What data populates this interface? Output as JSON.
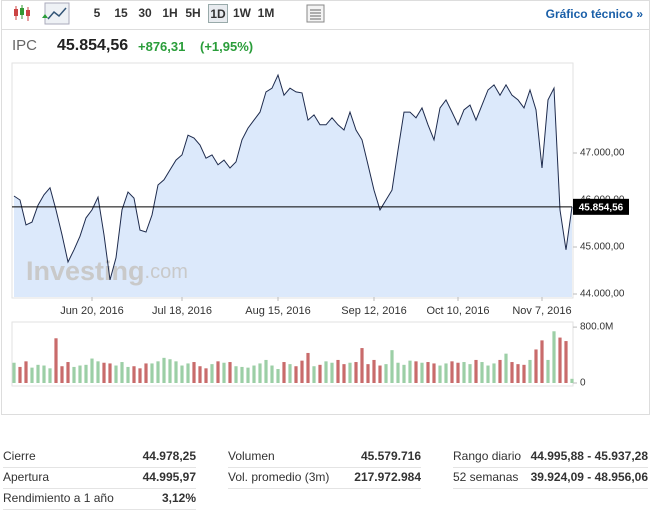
{
  "toolbar": {
    "intervals": [
      "5",
      "15",
      "30",
      "1H",
      "5H",
      "1D",
      "1W",
      "1M"
    ],
    "active_index": 5,
    "link": "Gráfico técnico »"
  },
  "quote": {
    "symbol": "IPC",
    "price": "45.854,56",
    "change": "+876,31",
    "change_pct": "(+1,95%)"
  },
  "watermark": [
    "Investing",
    ".com"
  ],
  "chart_data": [
    {
      "type": "area",
      "color": "#1e2b4d",
      "fill": "#dce9fb",
      "values": [
        46085,
        46000,
        45470,
        45530,
        45890,
        46110,
        46260,
        45790,
        45260,
        44680,
        44940,
        45230,
        45620,
        45790,
        46060,
        45260,
        44300,
        44770,
        45790,
        46170,
        46040,
        45360,
        45320,
        45680,
        46320,
        46430,
        46640,
        46850,
        46960,
        47380,
        47320,
        47170,
        46890,
        46960,
        46750,
        46850,
        46680,
        46810,
        47280,
        47530,
        47700,
        47870,
        48300,
        48380,
        48660,
        48230,
        48380,
        48300,
        48280,
        47700,
        47810,
        47600,
        47600,
        47750,
        47600,
        47490,
        47870,
        47490,
        47280,
        46750,
        46210,
        45790,
        46000,
        46210,
        47060,
        47870,
        47870,
        47750,
        47960,
        47600,
        47280,
        47960,
        48130,
        47870,
        47600,
        47920,
        48020,
        47700,
        48020,
        48340,
        48450,
        48230,
        48450,
        48230,
        48130,
        47960,
        48340,
        47920,
        46680,
        48130,
        48380,
        45790,
        44940,
        45854.56
      ],
      "xlim": [
        0,
        93
      ],
      "xticks": [
        {
          "value": 13,
          "label": "Jun 20, 2016"
        },
        {
          "value": 28,
          "label": "Jul 18, 2016"
        },
        {
          "value": 44,
          "label": "Aug 15, 2016"
        },
        {
          "value": 60,
          "label": "Sep 12, 2016"
        },
        {
          "value": 74,
          "label": "Oct 10, 2016"
        },
        {
          "value": 88,
          "label": "Nov 7, 2016"
        }
      ],
      "ylim": [
        43936,
        48894
      ],
      "yticks": [
        {
          "value": 44000,
          "label": "44.000,00"
        },
        {
          "value": 45000,
          "label": "45.000,00"
        },
        {
          "value": 46000,
          "label": "46.000,00"
        },
        {
          "value": 47000,
          "label": "47.000,00"
        }
      ]
    },
    {
      "type": "bar",
      "up_color": "#9ccfa6",
      "down_color": "#c96b6b",
      "values": [
        290,
        230,
        310,
        220,
        260,
        250,
        210,
        640,
        240,
        300,
        230,
        250,
        260,
        350,
        310,
        290,
        280,
        250,
        300,
        230,
        240,
        210,
        280,
        280,
        310,
        360,
        340,
        310,
        250,
        280,
        300,
        240,
        210,
        270,
        310,
        290,
        300,
        240,
        230,
        220,
        250,
        280,
        330,
        250,
        200,
        300,
        270,
        240,
        320,
        430,
        240,
        260,
        310,
        290,
        330,
        270,
        290,
        300,
        500,
        270,
        330,
        250,
        270,
        470,
        290,
        260,
        320,
        310,
        290,
        300,
        280,
        250,
        280,
        310,
        290,
        300,
        270,
        330,
        300,
        250,
        280,
        330,
        420,
        300,
        270,
        260,
        330,
        480,
        610,
        330,
        740,
        650,
        600,
        60
      ],
      "ylim": [
        0,
        830
      ],
      "yticks": [
        0,
        {
          "value": 800,
          "label": "800.0M"
        }
      ]
    }
  ],
  "stats": [
    [
      [
        "Cierre",
        "44.978,25"
      ],
      [
        "Volumen",
        "45.579.716"
      ],
      [
        "Rango diario",
        "44.995,88 - 45.937,28"
      ]
    ],
    [
      [
        "Apertura",
        "44.995,97"
      ],
      [
        "Vol. promedio (3m)",
        "217.972.984"
      ],
      [
        "52 semanas",
        "39.924,09 - 48.956,06"
      ]
    ],
    [
      [
        "Rendimiento a 1 año",
        "3,12%"
      ]
    ]
  ]
}
